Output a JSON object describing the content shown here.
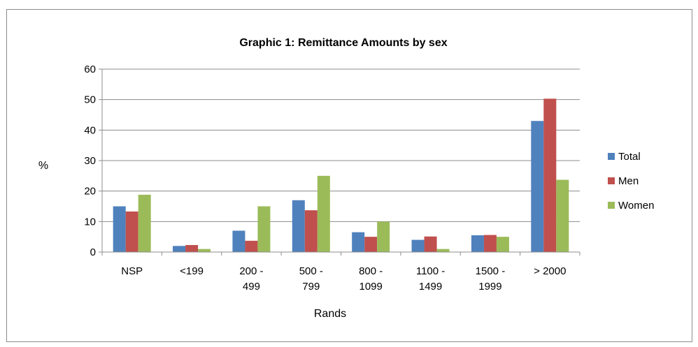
{
  "chart_data": {
    "type": "bar",
    "title": "Graphic 1: Remittance Amounts by sex",
    "xlabel": "Rands",
    "ylabel": "%",
    "ylim": [
      0,
      60
    ],
    "yticks": [
      0,
      10,
      20,
      30,
      40,
      50,
      60
    ],
    "grid": true,
    "legend_position": "right",
    "categories": [
      [
        "NSP"
      ],
      [
        "<199"
      ],
      [
        "200 -",
        "499"
      ],
      [
        "500 -",
        "799"
      ],
      [
        "800 -",
        "1099"
      ],
      [
        "1100 -",
        "1499"
      ],
      [
        "1500 -",
        "1999"
      ],
      [
        "> 2000"
      ]
    ],
    "series": [
      {
        "name": "Total",
        "color": "#4f81bd",
        "values": [
          15,
          2,
          7,
          17,
          6.5,
          4,
          5.5,
          43
        ]
      },
      {
        "name": "Men",
        "color": "#c0504d",
        "values": [
          13.3,
          2.3,
          3.7,
          13.7,
          5,
          5.1,
          5.6,
          50.3
        ]
      },
      {
        "name": "Women",
        "color": "#9bbb59",
        "values": [
          18.8,
          1,
          15,
          25,
          10,
          1,
          5,
          23.7
        ]
      }
    ]
  }
}
